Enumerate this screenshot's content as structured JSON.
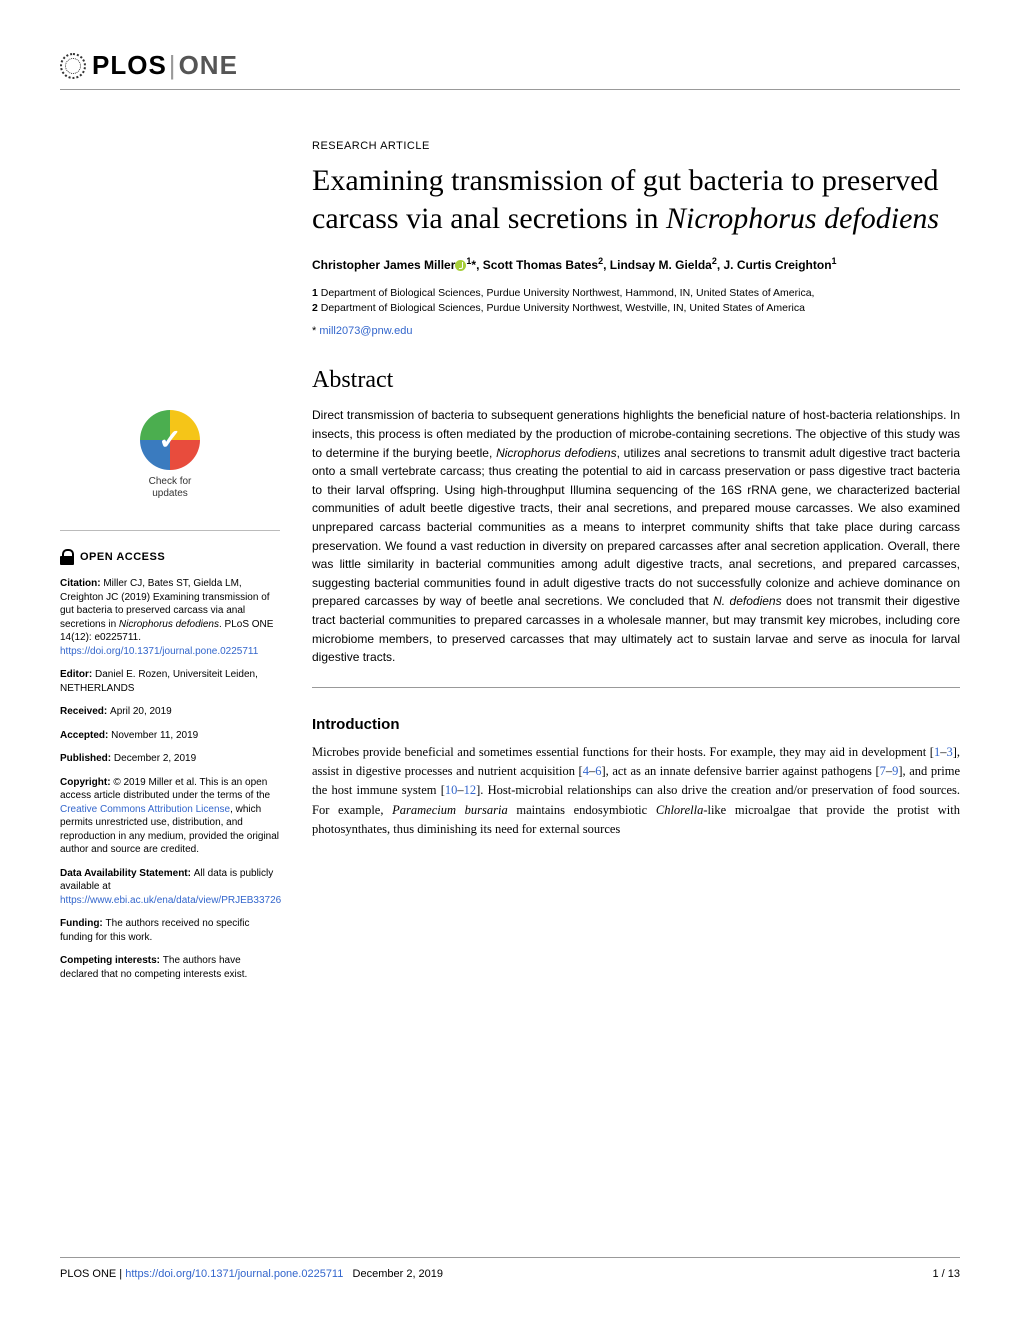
{
  "journal": {
    "logo_plos": "PLOS",
    "logo_one": "ONE"
  },
  "article": {
    "type": "RESEARCH ARTICLE",
    "title_pre": "Examining transmission of gut bacteria to preserved carcass via anal secretions in ",
    "title_species": "Nicrophorus defodiens",
    "authors_html": "Christopher James Miller",
    "author1_sup": "1",
    "author1_star": "*",
    "authors_rest": ", Scott Thomas Bates",
    "author2_sup": "2",
    "authors_rest2": ", Lindsay M. Gielda",
    "author3_sup": "2",
    "authors_rest3": ", J. Curtis Creighton",
    "author4_sup": "1",
    "affil1_num": "1",
    "affil1": " Department of Biological Sciences, Purdue University Northwest, Hammond, IN, United States of America,",
    "affil2_num": "2",
    "affil2": " Department of Biological Sciences, Purdue University Northwest, Westville, IN, United States of America",
    "corresp_star": "* ",
    "corresp_email": "mill2073@pnw.edu",
    "abstract_heading": "Abstract",
    "abstract_p1": "Direct transmission of bacteria to subsequent generations highlights the beneficial nature of host-bacteria relationships. In insects, this process is often mediated by the production of microbe-containing secretions. The objective of this study was to determine if the burying beetle, ",
    "abstract_sp1": "Nicrophorus defodiens",
    "abstract_p2": ", utilizes anal secretions to transmit adult digestive tract bacteria onto a small vertebrate carcass; thus creating the potential to aid in carcass preservation or pass digestive tract bacteria to their larval offspring. Using high-throughput Illumina sequencing of the 16S rRNA gene, we characterized bacterial communities of adult beetle digestive tracts, their anal secretions, and prepared mouse carcasses. We also examined unprepared carcass bacterial communities as a means to interpret community shifts that take place during carcass preservation. We found a vast reduction in diversity on prepared carcasses after anal secretion application. Overall, there was little similarity in bacterial communities among adult digestive tracts, anal secretions, and prepared carcasses, suggesting bacterial communities found in adult digestive tracts do not successfully colonize and achieve dominance on prepared carcasses by way of beetle anal secretions. We concluded that ",
    "abstract_sp2": "N. defodiens",
    "abstract_p3": " does not transmit their digestive tract bacterial communities to prepared carcasses in a wholesale manner, but may transmit key microbes, including core microbiome members, to preserved carcasses that may ultimately act to sustain larvae and serve as inocula for larval digestive tracts.",
    "intro_heading": "Introduction",
    "intro_p1": "Microbes provide beneficial and sometimes essential functions for their hosts. For example, they may aid in development [",
    "intro_ref1": "1",
    "intro_dash1": "–",
    "intro_ref2": "3",
    "intro_p2": "], assist in digestive processes and nutrient acquisition [",
    "intro_ref3": "4",
    "intro_dash2": "–",
    "intro_ref4": "6",
    "intro_p3": "], act as an innate defensive barrier against pathogens [",
    "intro_ref5": "7",
    "intro_dash3": "–",
    "intro_ref6": "9",
    "intro_p4": "], and prime the host immune system [",
    "intro_ref7": "10",
    "intro_dash4": "–",
    "intro_ref8": "12",
    "intro_p5": "]. Host-microbial relationships can also drive the creation and/or preservation of food sources. For example, ",
    "intro_sp1": "Paramecium bursaria",
    "intro_p6": " maintains endosymbiotic ",
    "intro_sp2": "Chlorella",
    "intro_p7": "-like microalgae that provide the protist with photosynthates, thus diminishing its need for external sources"
  },
  "sidebar": {
    "check_updates_l1": "Check for",
    "check_updates_l2": "updates",
    "open_access": "OPEN ACCESS",
    "citation_label": "Citation: ",
    "citation_text": "Miller CJ, Bates ST, Gielda LM, Creighton JC (2019) Examining transmission of gut bacteria to preserved carcass via anal secretions in ",
    "citation_species": "Nicrophorus defodiens",
    "citation_text2": ". PLoS ONE 14(12): e0225711. ",
    "citation_doi": "https://doi.org/10.1371/journal.pone.0225711",
    "editor_label": "Editor: ",
    "editor_text": "Daniel E. Rozen, Universiteit Leiden, NETHERLANDS",
    "received_label": "Received: ",
    "received_text": "April 20, 2019",
    "accepted_label": "Accepted: ",
    "accepted_text": "November 11, 2019",
    "published_label": "Published: ",
    "published_text": "December 2, 2019",
    "copyright_label": "Copyright: ",
    "copyright_text": "© 2019 Miller et al. This is an open access article distributed under the terms of the ",
    "cc_link": "Creative Commons Attribution License",
    "copyright_text2": ", which permits unrestricted use, distribution, and reproduction in any medium, provided the original author and source are credited.",
    "data_label": "Data Availability Statement: ",
    "data_text": "All data is publicly available at ",
    "data_link": "https://www.ebi.ac.uk/ena/data/view/PRJEB33726",
    "funding_label": "Funding: ",
    "funding_text": "The authors received no specific funding for this work.",
    "competing_label": "Competing interests: ",
    "competing_text": "The authors have declared that no competing interests exist."
  },
  "footer": {
    "journal": "PLOS ONE | ",
    "doi_link": "https://doi.org/10.1371/journal.pone.0225711",
    "date": "December 2, 2019",
    "page": "1 / 13"
  },
  "colors": {
    "link": "#3366cc",
    "orcid_green": "#a6ce39",
    "rule": "#999999"
  }
}
